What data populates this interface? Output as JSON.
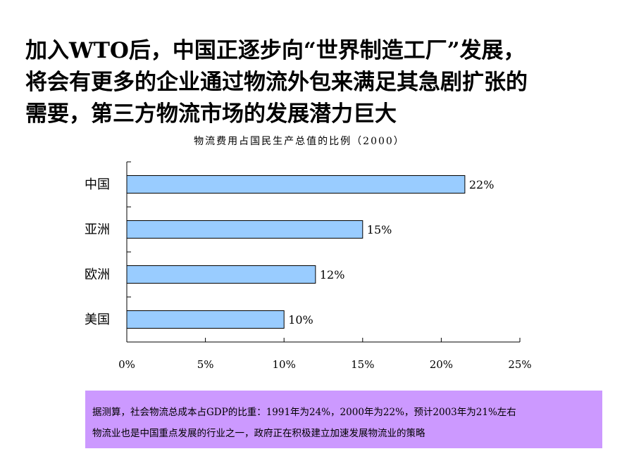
{
  "headline": {
    "lines": [
      "加入WTO后，中国正逐步向“世界制造工厂”发展，",
      "将会有更多的企业通过物流外包来满足其急剧扩张的",
      "需要，第三方物流市场的发展潜力巨大"
    ]
  },
  "chart_data": {
    "type": "bar",
    "orientation": "horizontal",
    "title": "物流费用占国民生产总值的比例（2000）",
    "categories": [
      "中国",
      "亚洲",
      "欧洲",
      "美国"
    ],
    "values": [
      21.5,
      15,
      12,
      10
    ],
    "data_labels": [
      "22%",
      "15%",
      "12%",
      "10%"
    ],
    "xlim": [
      0,
      25
    ],
    "x_ticks": [
      0,
      5,
      10,
      15,
      20,
      25
    ],
    "x_tick_labels": [
      "0%",
      "5%",
      "10%",
      "15%",
      "20%",
      "25%"
    ],
    "xlabel": "",
    "ylabel": "",
    "grid": false,
    "legend": "none",
    "colors": {
      "bar_fill": "#99ccff",
      "bar_stroke": "#000000"
    }
  },
  "note": {
    "lines": [
      "据测算，社会物流总成本占GDP的比重：1991年为24%，2000年为22%，预计2003年为21%左右",
      "物流业也是中国重点发展的行业之一，政府正在积极建立加速发展物流业的策略"
    ],
    "background": "#cc99ff"
  }
}
